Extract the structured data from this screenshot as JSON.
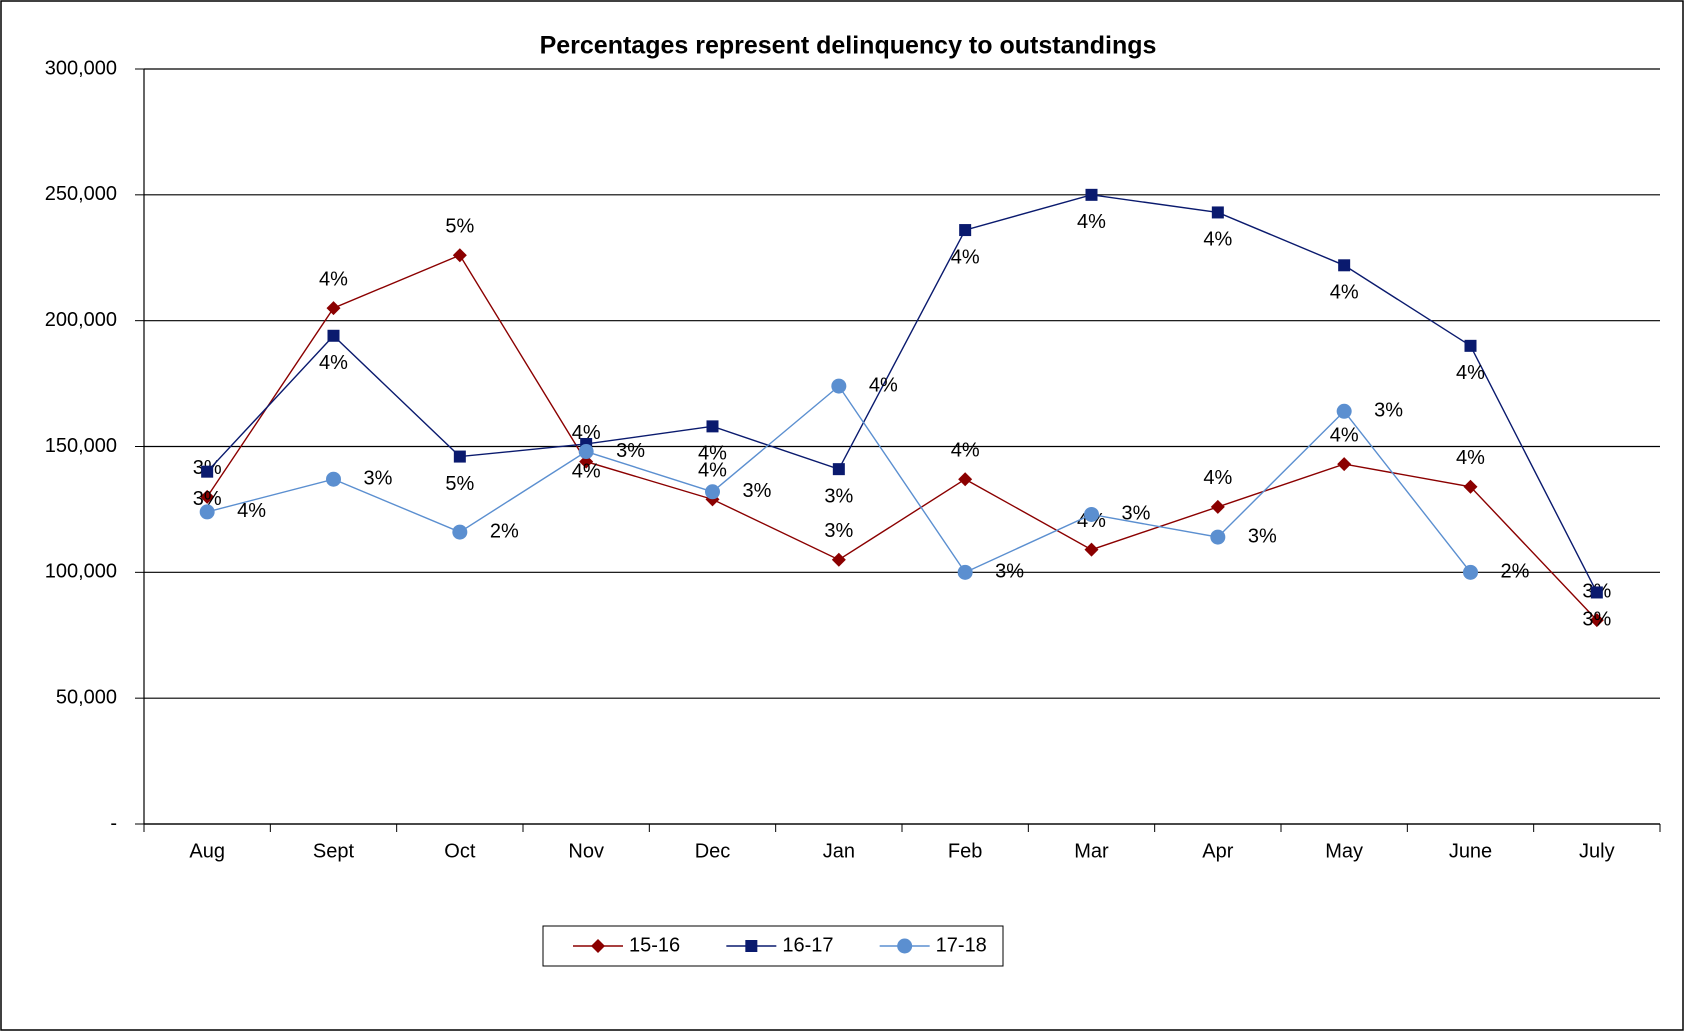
{
  "chart_data": {
    "type": "line",
    "title": "Percentages represent delinquency to outstandings",
    "categories": [
      "Aug",
      "Sept",
      "Oct",
      "Nov",
      "Dec",
      "Jan",
      "Feb",
      "Mar",
      "Apr",
      "May",
      "June",
      "July"
    ],
    "series": [
      {
        "name": "15-16",
        "color": "#8b0000",
        "marker": "diamond",
        "values": [
          130000,
          205000,
          226000,
          144000,
          129000,
          105000,
          137000,
          109000,
          126000,
          143000,
          134000,
          81000
        ],
        "value_labels": [
          "3%",
          "4%",
          "5%",
          "4%",
          "4%",
          "3%",
          "4%",
          "4%",
          "4%",
          "4%",
          "4%",
          "3%"
        ]
      },
      {
        "name": "16-17",
        "color": "#0a1a6e",
        "marker": "square",
        "values": [
          140000,
          194000,
          146000,
          151000,
          158000,
          141000,
          236000,
          250000,
          243000,
          222000,
          190000,
          92000
        ],
        "value_labels": [
          "3%",
          "4%",
          "5%",
          "4%",
          "4%",
          "3%",
          "4%",
          "4%",
          "4%",
          "4%",
          "4%",
          "3%"
        ]
      },
      {
        "name": "17-18",
        "color": "#5b8fd0",
        "marker": "circle",
        "values": [
          124000,
          137000,
          116000,
          148000,
          132000,
          174000,
          100000,
          123000,
          114000,
          164000,
          100000,
          null
        ],
        "value_labels": [
          "4%",
          "3%",
          "2%",
          "3%",
          "3%",
          "4%",
          "3%",
          "3%",
          "3%",
          "3%",
          "2%",
          null
        ]
      }
    ],
    "ylim": [
      0,
      300000
    ],
    "yticks": [
      {
        "value": 0,
        "label": "-"
      },
      {
        "value": 50000,
        "label": "50,000"
      },
      {
        "value": 100000,
        "label": "100,000"
      },
      {
        "value": 150000,
        "label": "150,000"
      },
      {
        "value": 200000,
        "label": "200,000"
      },
      {
        "value": 250000,
        "label": "250,000"
      },
      {
        "value": 300000,
        "label": "300,000"
      }
    ],
    "grid": true,
    "legend": "bottom"
  }
}
